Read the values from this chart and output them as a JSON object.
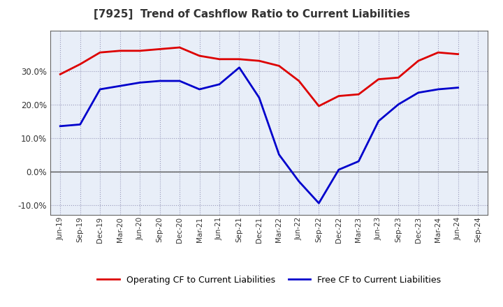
{
  "title": "[7925]  Trend of Cashflow Ratio to Current Liabilities",
  "x_labels": [
    "Jun-19",
    "Sep-19",
    "Dec-19",
    "Mar-20",
    "Jun-20",
    "Sep-20",
    "Dec-20",
    "Mar-21",
    "Jun-21",
    "Sep-21",
    "Dec-21",
    "Mar-22",
    "Jun-22",
    "Sep-22",
    "Dec-22",
    "Mar-23",
    "Jun-23",
    "Sep-23",
    "Dec-23",
    "Mar-24",
    "Jun-24",
    "Sep-24"
  ],
  "operating_cf": [
    29.0,
    32.0,
    35.5,
    36.0,
    36.0,
    36.5,
    37.0,
    34.5,
    33.5,
    33.5,
    33.0,
    31.5,
    27.0,
    19.5,
    22.5,
    23.0,
    27.5,
    28.0,
    33.0,
    35.5,
    35.0,
    null
  ],
  "free_cf": [
    13.5,
    14.0,
    24.5,
    25.5,
    26.5,
    27.0,
    27.0,
    24.5,
    26.0,
    31.0,
    22.0,
    5.0,
    -3.0,
    -9.5,
    0.5,
    3.0,
    15.0,
    20.0,
    23.5,
    24.5,
    25.0,
    null
  ],
  "ylim": [
    -13,
    42
  ],
  "yticks": [
    -10.0,
    0.0,
    10.0,
    20.0,
    30.0
  ],
  "operating_color": "#dd0000",
  "free_color": "#0000cc",
  "background_color": "#ffffff",
  "plot_bg_color": "#e8eef8",
  "grid_color": "#9999bb",
  "zero_line_color": "#555555",
  "legend_labels": [
    "Operating CF to Current Liabilities",
    "Free CF to Current Liabilities"
  ],
  "title_color": "#333333",
  "spine_color": "#666666"
}
